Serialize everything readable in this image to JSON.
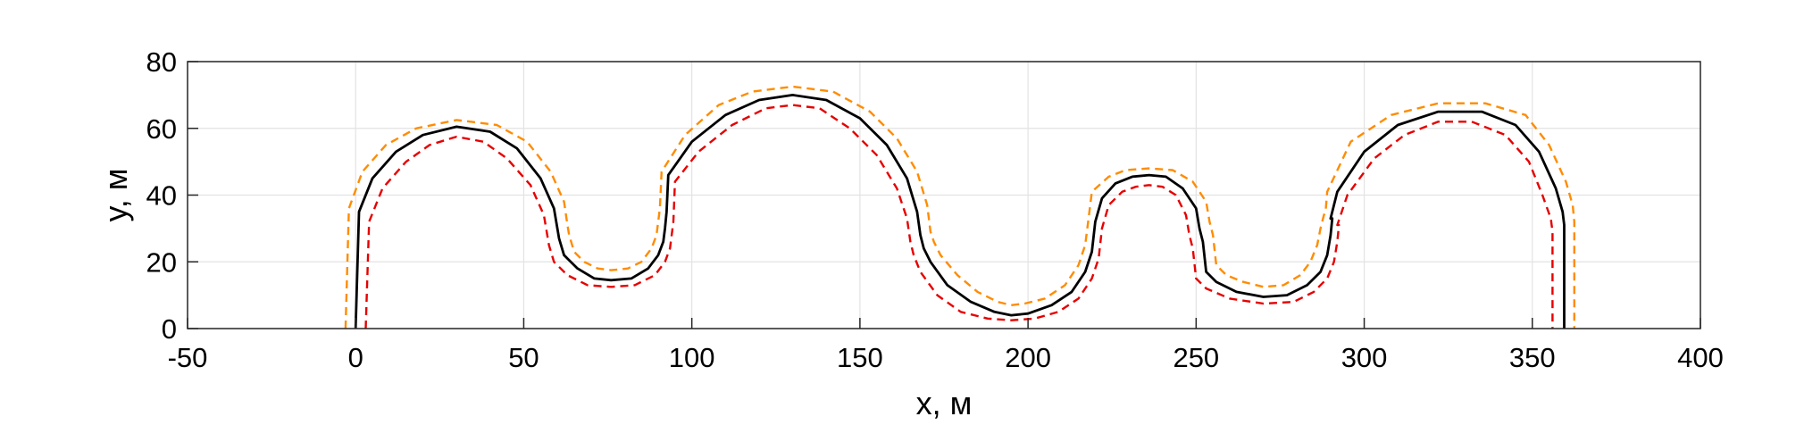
{
  "chart_data": {
    "type": "line",
    "xlabel": "x, м",
    "ylabel": "y, м",
    "xlim": [
      -50,
      400
    ],
    "ylim": [
      0,
      80
    ],
    "xticks": [
      -50,
      0,
      50,
      100,
      150,
      200,
      250,
      300,
      350,
      400
    ],
    "yticks": [
      0,
      20,
      40,
      60,
      80
    ],
    "grid": true,
    "legend": "none",
    "series": [
      {
        "color": "#000000",
        "dash": "solid",
        "x": [
          0,
          1,
          5,
          12,
          20,
          30,
          40,
          48,
          55,
          59,
          60,
          60.5,
          62,
          66,
          71,
          76,
          82,
          87,
          90,
          91.5,
          92,
          92.5,
          93,
          100,
          110,
          120,
          130,
          140,
          150,
          158,
          164,
          167,
          168,
          169,
          171,
          176,
          183,
          190,
          195,
          200,
          207,
          213,
          217,
          219,
          220,
          222,
          226,
          231,
          236,
          241,
          246,
          250,
          251,
          252,
          253,
          256,
          262,
          270,
          277,
          283,
          287,
          289,
          290,
          290.5,
          290,
          292,
          300,
          310,
          322,
          335,
          345,
          352,
          357,
          359,
          359.5,
          359.5
        ],
        "y": [
          0,
          35,
          45,
          53,
          58,
          60.5,
          59,
          54,
          45,
          36,
          30,
          27,
          22,
          18,
          15,
          14.5,
          15,
          18,
          22,
          26,
          30,
          35,
          46,
          56,
          64,
          68.5,
          70,
          68.5,
          63,
          55,
          45,
          35,
          28,
          24,
          20,
          13,
          8,
          5,
          4,
          4.5,
          7,
          11,
          17,
          23,
          32,
          39,
          43.5,
          45.5,
          46,
          45.5,
          42,
          36,
          30,
          26,
          17,
          14,
          11,
          9.5,
          10,
          13,
          17,
          22,
          28,
          33,
          33,
          41,
          53,
          61,
          65,
          65,
          61,
          53,
          42,
          35,
          31,
          0
        ]
      },
      {
        "color": "#ff8c00",
        "dash": "dashed",
        "x": [
          -3,
          -2,
          2,
          9,
          18,
          30,
          42,
          51,
          58,
          62,
          63,
          63.5,
          65,
          68,
          72,
          76,
          81,
          85,
          88,
          89.5,
          90,
          90.5,
          91,
          98,
          108,
          118,
          130,
          142,
          153,
          161,
          167,
          170,
          171,
          172,
          174,
          179,
          185,
          191,
          195,
          199,
          205,
          211,
          215,
          217,
          218,
          219,
          224,
          229,
          236,
          243,
          249,
          253,
          254,
          255,
          256,
          259,
          264,
          270,
          276,
          281,
          284,
          286,
          287,
          288,
          288.5,
          289,
          296,
          308,
          322,
          336,
          348,
          355,
          360,
          362,
          362.5,
          362.5
        ],
        "y": [
          0,
          36,
          47,
          55,
          60,
          62.5,
          61,
          56,
          47,
          38,
          31,
          28,
          23,
          20,
          18,
          17.5,
          18,
          20,
          24,
          28,
          32,
          36,
          47,
          58,
          67,
          71,
          72.5,
          71,
          65,
          57,
          47,
          37,
          29,
          26,
          22,
          16,
          11,
          8,
          7,
          7.5,
          9,
          13,
          19,
          25,
          33,
          41,
          45.5,
          47.5,
          48,
          47.5,
          44,
          38,
          32,
          28,
          19,
          16,
          14,
          12.5,
          13,
          16,
          20,
          25,
          30,
          34,
          35,
          41,
          56,
          64,
          67.5,
          67.5,
          64,
          55,
          44,
          37,
          32,
          0
        ]
      },
      {
        "color": "#e60000",
        "dash": "dashed",
        "x": [
          3,
          4,
          8,
          15,
          22,
          30,
          38,
          45,
          52,
          56,
          57,
          57.5,
          59,
          63,
          69,
          76,
          83,
          89,
          92,
          93.5,
          94,
          94.5,
          95,
          102,
          112,
          122,
          130,
          138,
          147,
          155,
          161,
          164,
          165,
          166,
          168,
          173,
          180,
          188,
          195,
          202,
          209,
          215,
          219,
          221,
          222,
          224,
          228,
          232,
          236,
          240,
          244,
          247,
          248,
          249,
          250,
          253,
          260,
          270,
          279,
          285,
          289,
          291,
          292,
          292.5,
          292,
          295,
          303,
          312,
          322,
          332,
          342,
          349,
          353,
          355.5,
          356,
          356
        ],
        "y": [
          0,
          32,
          42,
          50,
          55,
          57.5,
          56,
          51,
          43,
          34,
          28,
          25,
          20,
          16,
          13,
          12.5,
          13,
          16,
          20,
          24,
          28,
          32,
          44,
          53,
          61,
          66,
          67,
          66,
          60,
          52,
          42,
          33,
          26,
          22,
          17,
          10,
          5,
          3,
          2.5,
          3,
          5,
          9,
          15,
          21,
          30,
          37,
          41,
          42.5,
          43,
          42.5,
          40,
          34,
          28,
          24,
          15,
          12,
          9,
          7.5,
          8,
          11,
          15,
          20,
          26,
          31,
          31,
          40,
          51,
          58,
          62,
          62,
          58,
          50,
          40,
          33,
          29,
          0
        ]
      }
    ]
  }
}
